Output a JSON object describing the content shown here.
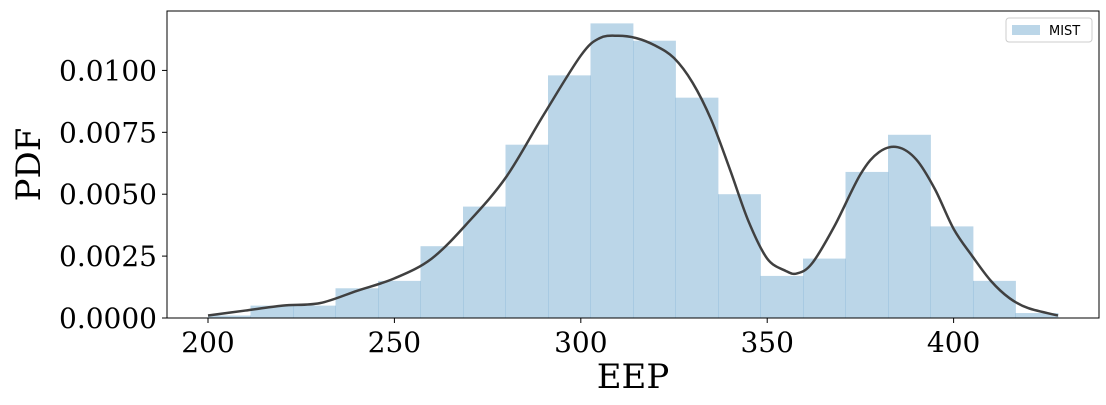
{
  "chart_data": {
    "type": "bar",
    "title": "",
    "xlabel": "EEP",
    "ylabel": "PDF",
    "xlim": [
      189,
      439
    ],
    "ylim": [
      0,
      0.0124
    ],
    "xticks": [
      200,
      250,
      300,
      350,
      400
    ],
    "xtick_labels": [
      "200",
      "250",
      "300",
      "350",
      "400"
    ],
    "yticks": [
      0.0,
      0.0025,
      0.005,
      0.0075,
      0.01
    ],
    "ytick_labels": [
      "0.0000",
      "0.0025",
      "0.0050",
      "0.0075",
      "0.0100"
    ],
    "grid": false,
    "legend": {
      "position": "top-right",
      "entries": [
        "MIST"
      ]
    },
    "series": [
      {
        "name": "MIST",
        "kind": "histogram",
        "color": "#1f77b4",
        "alpha": 0.3,
        "bin_edges": [
          200,
          211.4,
          222.8,
          234.2,
          245.6,
          257.0,
          268.4,
          279.8,
          291.2,
          302.6,
          314.0,
          325.4,
          336.8,
          348.2,
          359.6,
          371.0,
          382.4,
          393.8,
          405.2,
          416.6,
          428.0
        ],
        "values": [
          0.0001,
          0.0005,
          0.0005,
          0.0012,
          0.0015,
          0.0029,
          0.0045,
          0.007,
          0.0098,
          0.0119,
          0.0112,
          0.0089,
          0.005,
          0.0017,
          0.0024,
          0.0059,
          0.0074,
          0.0037,
          0.0015,
          0.0002
        ]
      },
      {
        "kind": "kde-line",
        "color": "#404040",
        "x": [
          200,
          210,
          220,
          230,
          240,
          250,
          260,
          270,
          280,
          290,
          300,
          305,
          310,
          315,
          320,
          325,
          330,
          335,
          340,
          345,
          350,
          355,
          358,
          362,
          368,
          375,
          380,
          385,
          390,
          395,
          400,
          405,
          410,
          415,
          420,
          428
        ],
        "y": [
          0.0001,
          0.0003,
          0.0005,
          0.0006,
          0.0011,
          0.0016,
          0.0024,
          0.0039,
          0.0057,
          0.0082,
          0.0106,
          0.0113,
          0.0114,
          0.0113,
          0.011,
          0.0105,
          0.0095,
          0.008,
          0.006,
          0.0039,
          0.0024,
          0.0019,
          0.0018,
          0.0022,
          0.0037,
          0.0058,
          0.0067,
          0.0069,
          0.0064,
          0.0052,
          0.0036,
          0.0025,
          0.0015,
          0.0008,
          0.0004,
          0.0001
        ]
      }
    ]
  }
}
